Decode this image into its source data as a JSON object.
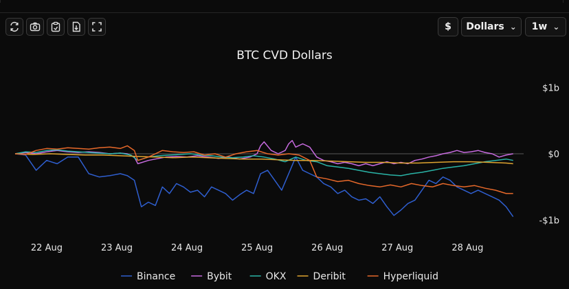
{
  "toolbar": {
    "currency_symbol": "$",
    "unit_select": "Dollars",
    "interval_select": "1w"
  },
  "colors": {
    "Binance": "#2f5fd0",
    "Bybit": "#c86be0",
    "OKX": "#2ab5a8",
    "Deribit": "#e0a530",
    "Hyperliquid": "#e8692a",
    "zero_line": "#4a4a4a"
  },
  "chart_data": {
    "type": "line",
    "title": "BTC CVD Dollars",
    "xlabel": "",
    "ylabel": "",
    "x_tick_labels": [
      "22 Aug",
      "23 Aug",
      "24 Aug",
      "25 Aug",
      "26 Aug",
      "27 Aug",
      "28 Aug"
    ],
    "x_ticks": [
      22,
      23,
      24,
      25,
      26,
      27,
      28
    ],
    "xlim": [
      21.55,
      28.8
    ],
    "y_tick_labels": [
      "$1b",
      "$0",
      "-$1b"
    ],
    "y_ticks": [
      1,
      0,
      -1
    ],
    "ylim": [
      -1.15,
      1.15
    ],
    "y_unit": "billion USD",
    "grid": false,
    "legend_position": "bottom",
    "series": [
      {
        "name": "Binance",
        "points": [
          [
            21.55,
            0.0
          ],
          [
            21.7,
            -0.02
          ],
          [
            21.85,
            -0.25
          ],
          [
            22.0,
            -0.1
          ],
          [
            22.15,
            -0.15
          ],
          [
            22.3,
            -0.05
          ],
          [
            22.45,
            -0.05
          ],
          [
            22.6,
            -0.3
          ],
          [
            22.75,
            -0.35
          ],
          [
            22.9,
            -0.33
          ],
          [
            23.05,
            -0.3
          ],
          [
            23.15,
            -0.33
          ],
          [
            23.25,
            -0.4
          ],
          [
            23.3,
            -0.6
          ],
          [
            23.35,
            -0.8
          ],
          [
            23.45,
            -0.73
          ],
          [
            23.55,
            -0.78
          ],
          [
            23.65,
            -0.5
          ],
          [
            23.75,
            -0.6
          ],
          [
            23.85,
            -0.45
          ],
          [
            23.95,
            -0.5
          ],
          [
            24.05,
            -0.58
          ],
          [
            24.15,
            -0.55
          ],
          [
            24.25,
            -0.65
          ],
          [
            24.35,
            -0.5
          ],
          [
            24.45,
            -0.55
          ],
          [
            24.55,
            -0.6
          ],
          [
            24.65,
            -0.7
          ],
          [
            24.75,
            -0.62
          ],
          [
            24.85,
            -0.55
          ],
          [
            24.95,
            -0.6
          ],
          [
            25.05,
            -0.3
          ],
          [
            25.15,
            -0.25
          ],
          [
            25.25,
            -0.4
          ],
          [
            25.35,
            -0.55
          ],
          [
            25.45,
            -0.3
          ],
          [
            25.55,
            -0.05
          ],
          [
            25.65,
            -0.25
          ],
          [
            25.75,
            -0.3
          ],
          [
            25.85,
            -0.35
          ],
          [
            25.95,
            -0.45
          ],
          [
            26.05,
            -0.5
          ],
          [
            26.15,
            -0.6
          ],
          [
            26.25,
            -0.55
          ],
          [
            26.35,
            -0.65
          ],
          [
            26.45,
            -0.7
          ],
          [
            26.55,
            -0.68
          ],
          [
            26.65,
            -0.75
          ],
          [
            26.75,
            -0.65
          ],
          [
            26.85,
            -0.8
          ],
          [
            26.95,
            -0.93
          ],
          [
            27.05,
            -0.85
          ],
          [
            27.15,
            -0.75
          ],
          [
            27.25,
            -0.7
          ],
          [
            27.35,
            -0.55
          ],
          [
            27.45,
            -0.4
          ],
          [
            27.55,
            -0.45
          ],
          [
            27.65,
            -0.35
          ],
          [
            27.75,
            -0.4
          ],
          [
            27.85,
            -0.5
          ],
          [
            27.95,
            -0.55
          ],
          [
            28.05,
            -0.6
          ],
          [
            28.15,
            -0.55
          ],
          [
            28.25,
            -0.6
          ],
          [
            28.35,
            -0.65
          ],
          [
            28.45,
            -0.7
          ],
          [
            28.55,
            -0.8
          ],
          [
            28.65,
            -0.95
          ]
        ]
      },
      {
        "name": "Bybit",
        "points": [
          [
            21.55,
            0.0
          ],
          [
            21.7,
            0.02
          ],
          [
            21.85,
            0.0
          ],
          [
            22.0,
            0.03
          ],
          [
            22.15,
            0.05
          ],
          [
            22.3,
            0.03
          ],
          [
            22.45,
            0.02
          ],
          [
            22.6,
            0.03
          ],
          [
            22.75,
            0.02
          ],
          [
            22.9,
            0.0
          ],
          [
            23.05,
            0.01
          ],
          [
            23.15,
            0.0
          ],
          [
            23.25,
            -0.05
          ],
          [
            23.3,
            -0.15
          ],
          [
            23.45,
            -0.1
          ],
          [
            23.55,
            -0.08
          ],
          [
            23.7,
            -0.05
          ],
          [
            23.85,
            -0.04
          ],
          [
            24.0,
            -0.05
          ],
          [
            24.15,
            -0.03
          ],
          [
            24.3,
            -0.05
          ],
          [
            24.45,
            -0.07
          ],
          [
            24.6,
            -0.05
          ],
          [
            24.75,
            -0.08
          ],
          [
            24.9,
            -0.05
          ],
          [
            25.0,
            0.0
          ],
          [
            25.05,
            0.12
          ],
          [
            25.1,
            0.18
          ],
          [
            25.2,
            0.05
          ],
          [
            25.3,
            0.0
          ],
          [
            25.4,
            0.05
          ],
          [
            25.45,
            0.15
          ],
          [
            25.5,
            0.2
          ],
          [
            25.55,
            0.1
          ],
          [
            25.65,
            0.15
          ],
          [
            25.75,
            0.1
          ],
          [
            25.85,
            -0.05
          ],
          [
            25.95,
            -0.1
          ],
          [
            26.05,
            -0.12
          ],
          [
            26.15,
            -0.15
          ],
          [
            26.25,
            -0.13
          ],
          [
            26.35,
            -0.15
          ],
          [
            26.45,
            -0.18
          ],
          [
            26.55,
            -0.15
          ],
          [
            26.65,
            -0.18
          ],
          [
            26.75,
            -0.15
          ],
          [
            26.85,
            -0.12
          ],
          [
            26.95,
            -0.15
          ],
          [
            27.05,
            -0.13
          ],
          [
            27.15,
            -0.15
          ],
          [
            27.25,
            -0.1
          ],
          [
            27.35,
            -0.08
          ],
          [
            27.45,
            -0.05
          ],
          [
            27.55,
            -0.03
          ],
          [
            27.65,
            0.0
          ],
          [
            27.75,
            0.02
          ],
          [
            27.85,
            0.05
          ],
          [
            27.95,
            0.02
          ],
          [
            28.05,
            0.03
          ],
          [
            28.15,
            0.05
          ],
          [
            28.25,
            0.02
          ],
          [
            28.35,
            0.0
          ],
          [
            28.45,
            -0.05
          ],
          [
            28.55,
            -0.02
          ],
          [
            28.65,
            0.0
          ]
        ]
      },
      {
        "name": "OKX",
        "points": [
          [
            21.55,
            0.0
          ],
          [
            21.7,
            0.03
          ],
          [
            21.85,
            0.02
          ],
          [
            22.0,
            0.05
          ],
          [
            22.15,
            0.06
          ],
          [
            22.3,
            0.04
          ],
          [
            22.45,
            0.03
          ],
          [
            22.6,
            0.02
          ],
          [
            22.75,
            0.01
          ],
          [
            22.9,
            0.0
          ],
          [
            23.05,
            0.01
          ],
          [
            23.2,
            -0.02
          ],
          [
            23.3,
            -0.1
          ],
          [
            23.45,
            -0.05
          ],
          [
            23.6,
            -0.03
          ],
          [
            23.75,
            -0.02
          ],
          [
            23.9,
            -0.01
          ],
          [
            24.05,
            0.0
          ],
          [
            24.2,
            -0.02
          ],
          [
            24.35,
            -0.03
          ],
          [
            24.5,
            -0.05
          ],
          [
            24.65,
            -0.06
          ],
          [
            24.8,
            -0.05
          ],
          [
            24.95,
            -0.03
          ],
          [
            25.1,
            -0.05
          ],
          [
            25.25,
            -0.08
          ],
          [
            25.4,
            -0.12
          ],
          [
            25.55,
            -0.05
          ],
          [
            25.7,
            -0.1
          ],
          [
            25.85,
            -0.12
          ],
          [
            26.0,
            -0.18
          ],
          [
            26.15,
            -0.2
          ],
          [
            26.3,
            -0.22
          ],
          [
            26.45,
            -0.25
          ],
          [
            26.6,
            -0.28
          ],
          [
            26.75,
            -0.3
          ],
          [
            26.9,
            -0.32
          ],
          [
            27.05,
            -0.33
          ],
          [
            27.2,
            -0.3
          ],
          [
            27.35,
            -0.28
          ],
          [
            27.5,
            -0.25
          ],
          [
            27.65,
            -0.22
          ],
          [
            27.8,
            -0.2
          ],
          [
            27.95,
            -0.18
          ],
          [
            28.1,
            -0.15
          ],
          [
            28.25,
            -0.12
          ],
          [
            28.4,
            -0.1
          ],
          [
            28.55,
            -0.08
          ],
          [
            28.65,
            -0.1
          ]
        ]
      },
      {
        "name": "Deribit",
        "points": [
          [
            21.55,
            0.0
          ],
          [
            21.8,
            -0.01
          ],
          [
            22.05,
            0.0
          ],
          [
            22.3,
            -0.01
          ],
          [
            22.55,
            -0.02
          ],
          [
            22.8,
            -0.02
          ],
          [
            23.05,
            -0.03
          ],
          [
            23.3,
            -0.04
          ],
          [
            23.55,
            -0.05
          ],
          [
            23.8,
            -0.06
          ],
          [
            24.05,
            -0.05
          ],
          [
            24.3,
            -0.06
          ],
          [
            24.55,
            -0.07
          ],
          [
            24.8,
            -0.08
          ],
          [
            25.05,
            -0.08
          ],
          [
            25.3,
            -0.09
          ],
          [
            25.55,
            -0.1
          ],
          [
            25.8,
            -0.1
          ],
          [
            26.05,
            -0.11
          ],
          [
            26.3,
            -0.12
          ],
          [
            26.55,
            -0.13
          ],
          [
            26.8,
            -0.13
          ],
          [
            27.05,
            -0.14
          ],
          [
            27.3,
            -0.14
          ],
          [
            27.55,
            -0.13
          ],
          [
            27.8,
            -0.12
          ],
          [
            28.05,
            -0.12
          ],
          [
            28.3,
            -0.13
          ],
          [
            28.55,
            -0.14
          ],
          [
            28.65,
            -0.15
          ]
        ]
      },
      {
        "name": "Hyperliquid",
        "points": [
          [
            21.55,
            0.0
          ],
          [
            21.7,
            -0.01
          ],
          [
            21.85,
            0.05
          ],
          [
            22.0,
            0.08
          ],
          [
            22.15,
            0.07
          ],
          [
            22.3,
            0.09
          ],
          [
            22.45,
            0.08
          ],
          [
            22.6,
            0.07
          ],
          [
            22.75,
            0.09
          ],
          [
            22.9,
            0.1
          ],
          [
            23.05,
            0.08
          ],
          [
            23.15,
            0.12
          ],
          [
            23.25,
            0.05
          ],
          [
            23.3,
            -0.1
          ],
          [
            23.45,
            -0.05
          ],
          [
            23.55,
            0.0
          ],
          [
            23.65,
            0.05
          ],
          [
            23.8,
            0.03
          ],
          [
            23.95,
            0.02
          ],
          [
            24.1,
            0.03
          ],
          [
            24.25,
            -0.02
          ],
          [
            24.4,
            0.0
          ],
          [
            24.55,
            -0.05
          ],
          [
            24.7,
            0.0
          ],
          [
            24.85,
            0.03
          ],
          [
            25.0,
            0.05
          ],
          [
            25.15,
            0.0
          ],
          [
            25.3,
            -0.02
          ],
          [
            25.45,
            0.0
          ],
          [
            25.6,
            -0.02
          ],
          [
            25.75,
            -0.1
          ],
          [
            25.85,
            -0.35
          ],
          [
            26.0,
            -0.38
          ],
          [
            26.15,
            -0.42
          ],
          [
            26.3,
            -0.4
          ],
          [
            26.45,
            -0.45
          ],
          [
            26.6,
            -0.48
          ],
          [
            26.75,
            -0.5
          ],
          [
            26.9,
            -0.47
          ],
          [
            27.05,
            -0.5
          ],
          [
            27.2,
            -0.45
          ],
          [
            27.35,
            -0.48
          ],
          [
            27.5,
            -0.5
          ],
          [
            27.65,
            -0.45
          ],
          [
            27.8,
            -0.48
          ],
          [
            27.95,
            -0.5
          ],
          [
            28.1,
            -0.48
          ],
          [
            28.25,
            -0.52
          ],
          [
            28.4,
            -0.55
          ],
          [
            28.55,
            -0.6
          ],
          [
            28.65,
            -0.6
          ]
        ]
      }
    ]
  }
}
